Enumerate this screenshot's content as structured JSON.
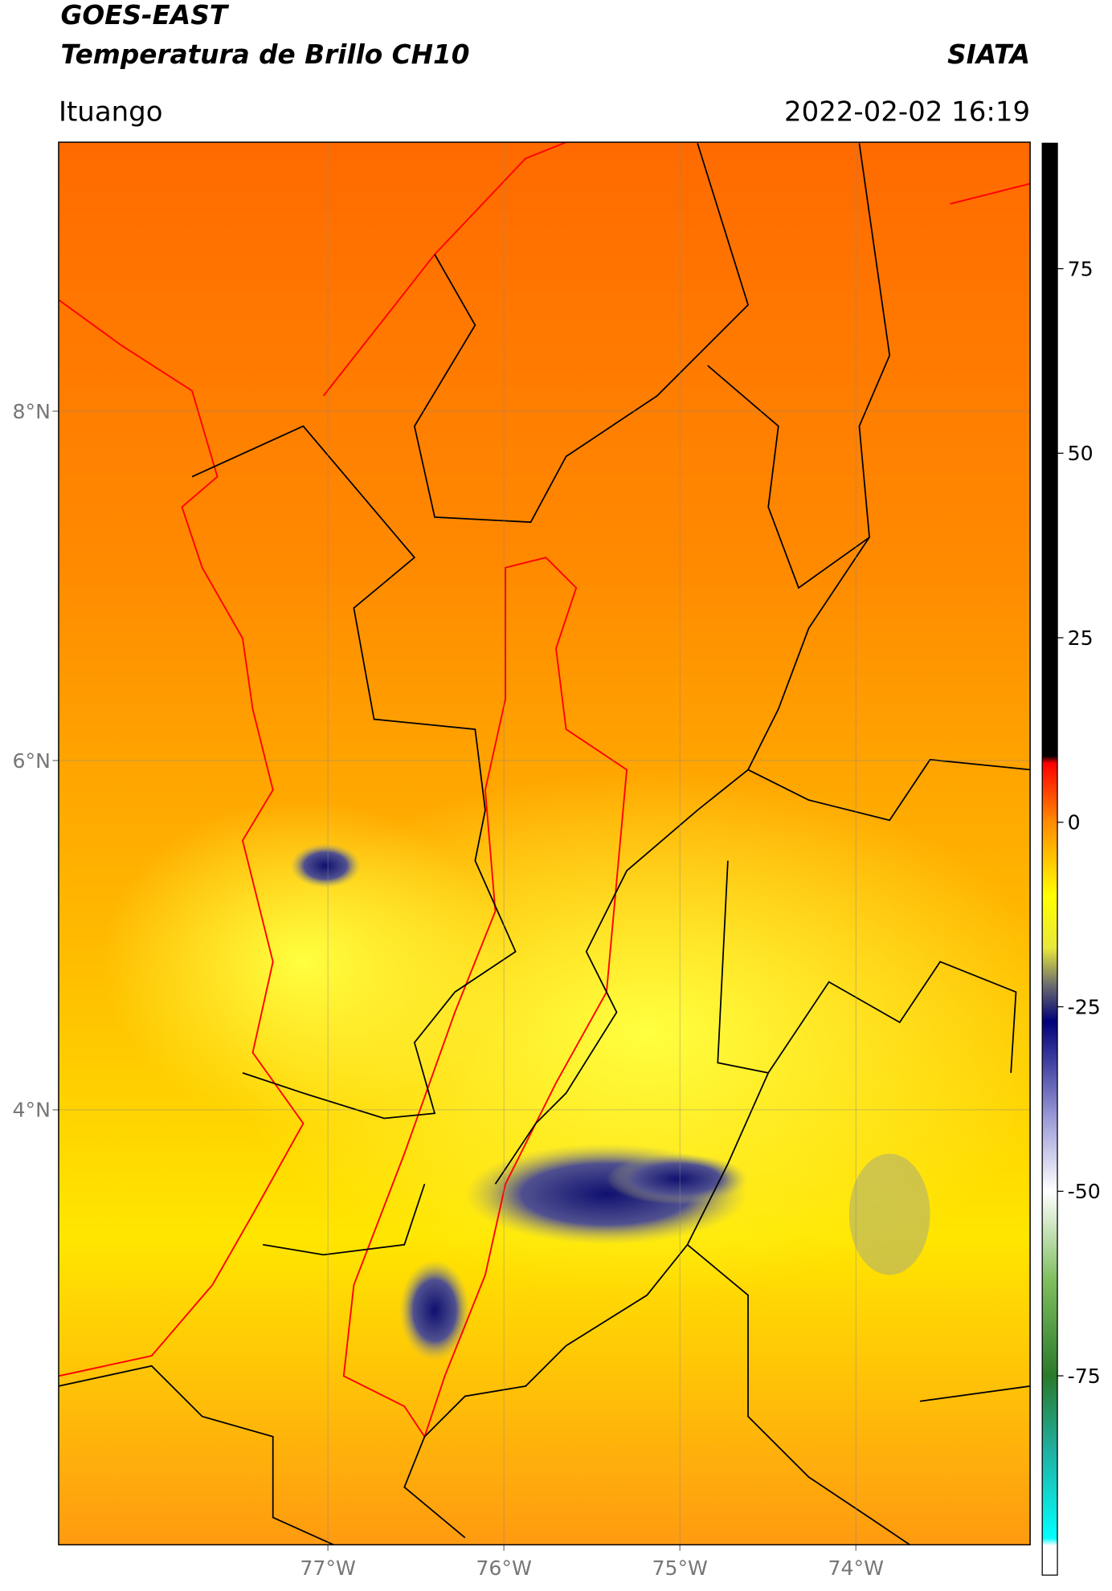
{
  "header": {
    "satellite": "GOES-EAST",
    "product": "Temperatura de Brillo CH10",
    "agency": "SIATA",
    "region": "Ituango",
    "datetime": "2022-02-02 16:19"
  },
  "map": {
    "xlim": [
      -78.53,
      -73.01
    ],
    "ylim": [
      1.51,
      9.54
    ],
    "xticks": [
      {
        "value": -77,
        "label": "77°W"
      },
      {
        "value": -76,
        "label": "76°W"
      },
      {
        "value": -75,
        "label": "75°W"
      },
      {
        "value": -74,
        "label": "74°W"
      }
    ],
    "yticks": [
      {
        "value": 8,
        "label": "8°N"
      },
      {
        "value": 6,
        "label": "6°N"
      },
      {
        "value": 4,
        "label": "4°N"
      }
    ],
    "grid": true
  },
  "colorbar": {
    "lim": [
      -102,
      92
    ],
    "ticks": [
      75,
      50,
      25,
      0,
      -25,
      -50,
      -75
    ],
    "stops": [
      {
        "value": 92,
        "color": "#000000"
      },
      {
        "value": 9,
        "color": "#000000"
      },
      {
        "value": 8,
        "color": "#ff0000"
      },
      {
        "value": 0,
        "color": "#ff8c00"
      },
      {
        "value": -10,
        "color": "#ffff00"
      },
      {
        "value": -17,
        "color": "#e8e83a"
      },
      {
        "value": -22,
        "color": "#6e6e6e"
      },
      {
        "value": -27,
        "color": "#00007a"
      },
      {
        "value": -40,
        "color": "#9a9ad8"
      },
      {
        "value": -50,
        "color": "#ffffff"
      },
      {
        "value": -62,
        "color": "#7fbf5f"
      },
      {
        "value": -75,
        "color": "#2a7a2a"
      },
      {
        "value": -85,
        "color": "#20b0a0"
      },
      {
        "value": -97,
        "color": "#00ffff"
      },
      {
        "value": -98,
        "color": "#ffffff"
      },
      {
        "value": -102,
        "color": "#ffffff"
      }
    ]
  }
}
